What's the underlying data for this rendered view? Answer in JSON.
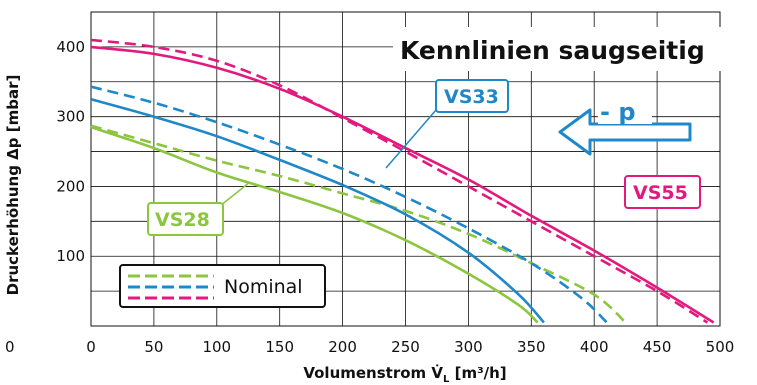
{
  "chart_data": {
    "type": "line",
    "title": "Kennlinien saugseitig",
    "xlabel": "Volumenstrom V̇",
    "xlabel_sub": "L",
    "xlabel_unit": " [m³/h]",
    "ylabel": "Druckerhöhung Δp [mbar]",
    "xlim": [
      0,
      500
    ],
    "ylim": [
      0,
      450
    ],
    "x_ticks": [
      "0",
      "50",
      "100",
      "150",
      "200",
      "250",
      "300",
      "350",
      "400",
      "450",
      "500"
    ],
    "y_ticks": [
      "100",
      "200",
      "300",
      "400"
    ],
    "origin_label": "0",
    "grid": true,
    "series": [
      {
        "name": "VS28",
        "style": "solid",
        "color": "#8cc63f",
        "x": [
          0,
          50,
          100,
          150,
          200,
          250,
          300,
          340,
          355
        ],
        "y": [
          285,
          255,
          220,
          192,
          162,
          123,
          75,
          30,
          5
        ]
      },
      {
        "name": "VS28",
        "style": "dashed",
        "color": "#8cc63f",
        "x": [
          0,
          50,
          100,
          150,
          200,
          250,
          300,
          350,
          400,
          425
        ],
        "y": [
          287,
          262,
          237,
          215,
          190,
          165,
          132,
          90,
          45,
          5
        ]
      },
      {
        "name": "VS33",
        "style": "solid",
        "color": "#1e88c8",
        "x": [
          0,
          50,
          100,
          150,
          200,
          250,
          300,
          340,
          360
        ],
        "y": [
          325,
          300,
          272,
          238,
          202,
          160,
          105,
          45,
          5
        ]
      },
      {
        "name": "VS33",
        "style": "dashed",
        "color": "#1e88c8",
        "x": [
          0,
          50,
          100,
          150,
          200,
          250,
          300,
          350,
          390,
          410
        ],
        "y": [
          343,
          320,
          292,
          260,
          225,
          185,
          140,
          90,
          40,
          5
        ]
      },
      {
        "name": "VS55",
        "style": "solid",
        "color": "#e2197e",
        "x": [
          0,
          50,
          100,
          150,
          200,
          250,
          300,
          350,
          400,
          450,
          495
        ],
        "y": [
          400,
          390,
          370,
          340,
          300,
          255,
          210,
          158,
          108,
          55,
          5
        ]
      },
      {
        "name": "VS55",
        "style": "dashed",
        "color": "#e2197e",
        "x": [
          0,
          50,
          100,
          150,
          200,
          250,
          300,
          350,
          400,
          450,
          490
        ],
        "y": [
          410,
          400,
          380,
          345,
          298,
          250,
          200,
          150,
          100,
          50,
          5
        ]
      }
    ],
    "annotations": {
      "vs28": "VS28",
      "vs33": "VS33",
      "vs55": "VS55",
      "pressure": "- p",
      "legend_label": "Nominal"
    },
    "colors": {
      "vs28": "#8cc63f",
      "vs33": "#1e88c8",
      "vs55": "#e2197e",
      "arrow": "#1e88c8"
    }
  }
}
